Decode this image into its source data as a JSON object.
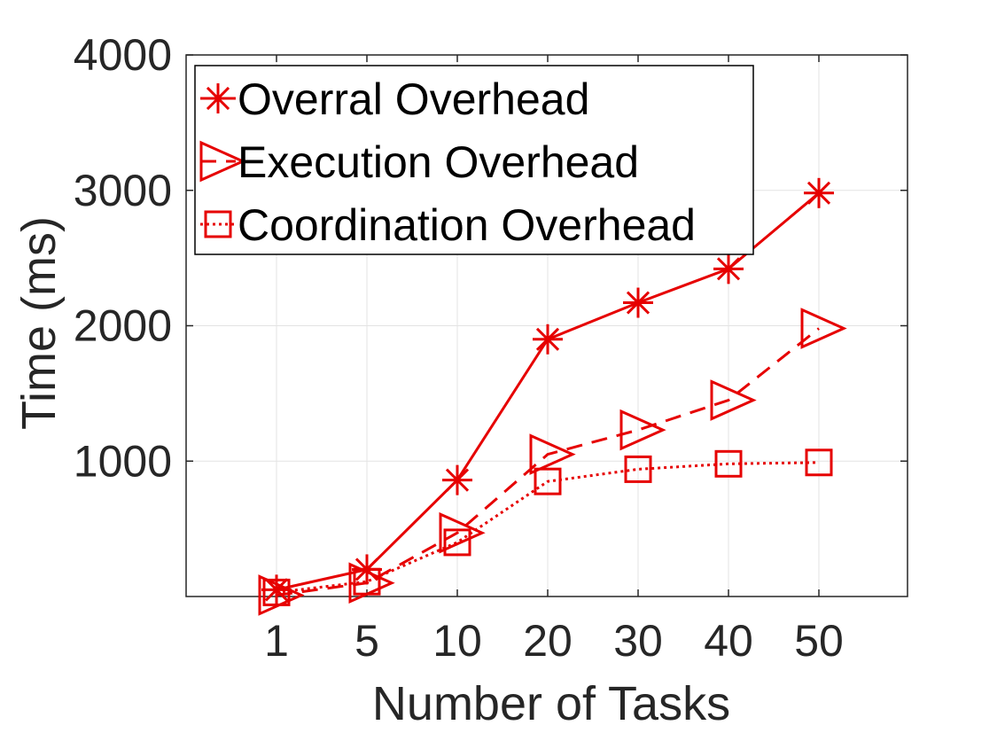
{
  "chart_data": {
    "type": "line",
    "title": "",
    "xlabel": "Number of Tasks",
    "ylabel": "Time (ms)",
    "categories": [
      "1",
      "5",
      "10",
      "20",
      "30",
      "40",
      "50"
    ],
    "ylim": [
      0,
      4000
    ],
    "yticks": [
      1000,
      2000,
      3000,
      4000
    ],
    "grid": true,
    "legend_position": "top-left",
    "series": [
      {
        "name": "Overral Overhead",
        "marker": "asterisk",
        "line_style": "solid",
        "color": "#e60000",
        "values": [
          50,
          200,
          860,
          1900,
          2170,
          2420,
          2980
        ]
      },
      {
        "name": "Execution Overhead",
        "marker": "triangle-right",
        "line_style": "dashed",
        "color": "#e60000",
        "values": [
          10,
          100,
          470,
          1050,
          1230,
          1450,
          1980
        ]
      },
      {
        "name": "Coordination Overhead",
        "marker": "square",
        "line_style": "dotted",
        "color": "#e60000",
        "values": [
          30,
          110,
          400,
          850,
          940,
          980,
          990
        ]
      }
    ]
  }
}
